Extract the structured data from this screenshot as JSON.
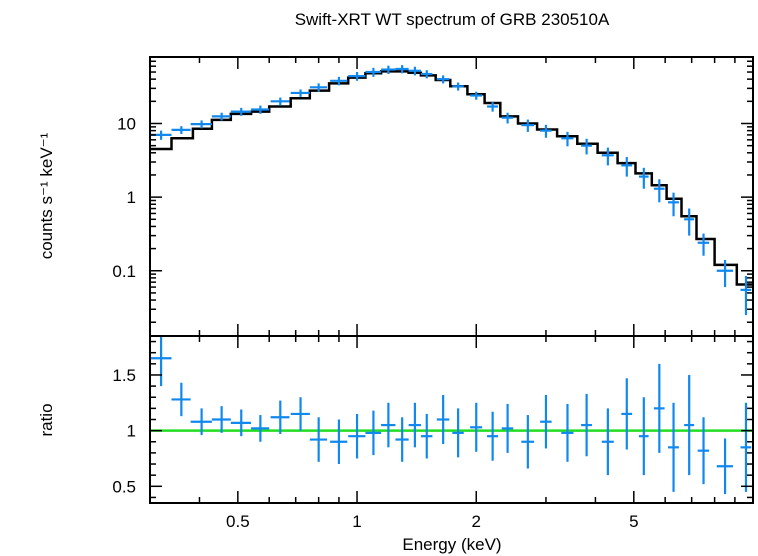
{
  "chart_data": [
    {
      "type": "scatter",
      "title": "Swift-XRT WT spectrum of GRB 230510A",
      "ylabel": "counts s⁻¹ keV⁻¹",
      "xlabel": "",
      "xscale": "log",
      "yscale": "log",
      "xlim": [
        0.3,
        10.0
      ],
      "ylim": [
        0.013,
        80
      ],
      "yticks": [
        0.1,
        1,
        10
      ],
      "ytick_labels": [
        "0.1",
        "1",
        "10"
      ],
      "colors": {
        "data": "#1188ee",
        "model": "#000000"
      },
      "series": [
        {
          "type": "errorbar",
          "points": [
            {
              "x": 0.32,
              "y": 7.0,
              "xe": 0.02,
              "ye": 1.0
            },
            {
              "x": 0.36,
              "y": 8.2,
              "xe": 0.02,
              "ye": 1.0
            },
            {
              "x": 0.405,
              "y": 9.8,
              "xe": 0.025,
              "ye": 1.2
            },
            {
              "x": 0.455,
              "y": 12.5,
              "xe": 0.025,
              "ye": 1.5
            },
            {
              "x": 0.51,
              "y": 14.5,
              "xe": 0.03,
              "ye": 1.8
            },
            {
              "x": 0.57,
              "y": 15.5,
              "xe": 0.03,
              "ye": 2.0
            },
            {
              "x": 0.64,
              "y": 20.0,
              "xe": 0.035,
              "ye": 2.5
            },
            {
              "x": 0.72,
              "y": 26.0,
              "xe": 0.04,
              "ye": 3.0
            },
            {
              "x": 0.8,
              "y": 31.0,
              "xe": 0.04,
              "ye": 4.0
            },
            {
              "x": 0.9,
              "y": 38.0,
              "xe": 0.045,
              "ye": 5.0
            },
            {
              "x": 1.0,
              "y": 44.0,
              "xe": 0.05,
              "ye": 6.0
            },
            {
              "x": 1.1,
              "y": 50.0,
              "xe": 0.05,
              "ye": 7.0
            },
            {
              "x": 1.2,
              "y": 54.0,
              "xe": 0.05,
              "ye": 7.0
            },
            {
              "x": 1.3,
              "y": 55.0,
              "xe": 0.05,
              "ye": 7.0
            },
            {
              "x": 1.4,
              "y": 52.0,
              "xe": 0.05,
              "ye": 7.0
            },
            {
              "x": 1.5,
              "y": 47.0,
              "xe": 0.05,
              "ye": 6.0
            },
            {
              "x": 1.65,
              "y": 40.0,
              "xe": 0.06,
              "ye": 5.0
            },
            {
              "x": 1.8,
              "y": 32.0,
              "xe": 0.06,
              "ye": 4.0
            },
            {
              "x": 2.0,
              "y": 24.0,
              "xe": 0.07,
              "ye": 3.0
            },
            {
              "x": 2.2,
              "y": 17.0,
              "xe": 0.07,
              "ye": 2.5
            },
            {
              "x": 2.4,
              "y": 12.0,
              "xe": 0.08,
              "ye": 2.0
            },
            {
              "x": 2.7,
              "y": 9.5,
              "xe": 0.1,
              "ye": 1.8
            },
            {
              "x": 3.0,
              "y": 8.0,
              "xe": 0.1,
              "ye": 1.6
            },
            {
              "x": 3.4,
              "y": 6.3,
              "xe": 0.12,
              "ye": 1.4
            },
            {
              "x": 3.8,
              "y": 5.0,
              "xe": 0.12,
              "ye": 1.2
            },
            {
              "x": 4.3,
              "y": 3.7,
              "xe": 0.15,
              "ye": 1.0
            },
            {
              "x": 4.8,
              "y": 2.7,
              "xe": 0.15,
              "ye": 0.8
            },
            {
              "x": 5.3,
              "y": 1.9,
              "xe": 0.15,
              "ye": 0.6
            },
            {
              "x": 5.8,
              "y": 1.3,
              "xe": 0.18,
              "ye": 0.45
            },
            {
              "x": 6.3,
              "y": 0.85,
              "xe": 0.2,
              "ye": 0.3
            },
            {
              "x": 6.9,
              "y": 0.5,
              "xe": 0.2,
              "ye": 0.2
            },
            {
              "x": 7.5,
              "y": 0.24,
              "xe": 0.25,
              "ye": 0.08
            },
            {
              "x": 8.5,
              "y": 0.1,
              "xe": 0.4,
              "ye": 0.04
            },
            {
              "x": 9.6,
              "y": 0.055,
              "xe": 0.3,
              "ye": 0.03
            }
          ]
        },
        {
          "type": "step",
          "points": [
            {
              "x": 0.3,
              "y": 4.5
            },
            {
              "x": 0.34,
              "y": 6.3
            },
            {
              "x": 0.385,
              "y": 8.5
            },
            {
              "x": 0.43,
              "y": 11.2
            },
            {
              "x": 0.48,
              "y": 13.5
            },
            {
              "x": 0.54,
              "y": 14.5
            },
            {
              "x": 0.6,
              "y": 17.0
            },
            {
              "x": 0.68,
              "y": 22.0
            },
            {
              "x": 0.76,
              "y": 28.0
            },
            {
              "x": 0.85,
              "y": 35.0
            },
            {
              "x": 0.95,
              "y": 42.0
            },
            {
              "x": 1.05,
              "y": 48.0
            },
            {
              "x": 1.15,
              "y": 51.0
            },
            {
              "x": 1.25,
              "y": 51.0
            },
            {
              "x": 1.35,
              "y": 49.0
            },
            {
              "x": 1.45,
              "y": 45.0
            },
            {
              "x": 1.58,
              "y": 39.0
            },
            {
              "x": 1.72,
              "y": 32.0
            },
            {
              "x": 1.9,
              "y": 25.0
            },
            {
              "x": 2.1,
              "y": 19.0
            },
            {
              "x": 2.3,
              "y": 12.5
            },
            {
              "x": 2.55,
              "y": 10.0
            },
            {
              "x": 2.85,
              "y": 8.3
            },
            {
              "x": 3.2,
              "y": 6.7
            },
            {
              "x": 3.6,
              "y": 5.3
            },
            {
              "x": 4.05,
              "y": 4.0
            },
            {
              "x": 4.55,
              "y": 2.9
            },
            {
              "x": 5.05,
              "y": 2.1
            },
            {
              "x": 5.55,
              "y": 1.45
            },
            {
              "x": 6.05,
              "y": 0.95
            },
            {
              "x": 6.6,
              "y": 0.55
            },
            {
              "x": 7.2,
              "y": 0.27
            },
            {
              "x": 8.0,
              "y": 0.12
            },
            {
              "x": 9.1,
              "y": 0.065
            },
            {
              "x": 10.0,
              "y": 0.065
            }
          ]
        }
      ]
    },
    {
      "type": "scatter",
      "title": "",
      "ylabel": "ratio",
      "xlabel": "Energy (keV)",
      "xscale": "log",
      "yscale": "linear",
      "xlim": [
        0.3,
        10.0
      ],
      "ylim": [
        0.35,
        1.85
      ],
      "xticks": [
        0.5,
        1,
        2,
        5
      ],
      "xtick_labels": [
        "0.5",
        "1",
        "2",
        "5"
      ],
      "yticks": [
        0.5,
        1,
        1.5
      ],
      "ytick_labels": [
        "0.5",
        "1",
        "1.5"
      ],
      "reference_line": 1.0,
      "colors": {
        "data": "#1188ee",
        "reference": "#22dd22"
      },
      "series": [
        {
          "type": "errorbar",
          "points": [
            {
              "x": 0.32,
              "y": 1.65,
              "xe": 0.02,
              "ye": 0.25
            },
            {
              "x": 0.36,
              "y": 1.28,
              "xe": 0.02,
              "ye": 0.15
            },
            {
              "x": 0.405,
              "y": 1.08,
              "xe": 0.025,
              "ye": 0.12
            },
            {
              "x": 0.455,
              "y": 1.1,
              "xe": 0.025,
              "ye": 0.12
            },
            {
              "x": 0.51,
              "y": 1.07,
              "xe": 0.03,
              "ye": 0.12
            },
            {
              "x": 0.57,
              "y": 1.02,
              "xe": 0.03,
              "ye": 0.12
            },
            {
              "x": 0.64,
              "y": 1.12,
              "xe": 0.035,
              "ye": 0.15
            },
            {
              "x": 0.72,
              "y": 1.15,
              "xe": 0.04,
              "ye": 0.15
            },
            {
              "x": 0.8,
              "y": 0.92,
              "xe": 0.04,
              "ye": 0.2
            },
            {
              "x": 0.9,
              "y": 0.9,
              "xe": 0.045,
              "ye": 0.2
            },
            {
              "x": 1.0,
              "y": 0.95,
              "xe": 0.05,
              "ye": 0.2
            },
            {
              "x": 1.1,
              "y": 0.98,
              "xe": 0.05,
              "ye": 0.2
            },
            {
              "x": 1.2,
              "y": 1.05,
              "xe": 0.05,
              "ye": 0.2
            },
            {
              "x": 1.3,
              "y": 0.92,
              "xe": 0.05,
              "ye": 0.2
            },
            {
              "x": 1.4,
              "y": 1.05,
              "xe": 0.05,
              "ye": 0.2
            },
            {
              "x": 1.5,
              "y": 0.95,
              "xe": 0.05,
              "ye": 0.2
            },
            {
              "x": 1.65,
              "y": 1.1,
              "xe": 0.06,
              "ye": 0.22
            },
            {
              "x": 1.8,
              "y": 0.98,
              "xe": 0.06,
              "ye": 0.22
            },
            {
              "x": 2.0,
              "y": 1.03,
              "xe": 0.07,
              "ye": 0.22
            },
            {
              "x": 2.2,
              "y": 0.95,
              "xe": 0.07,
              "ye": 0.22
            },
            {
              "x": 2.4,
              "y": 1.02,
              "xe": 0.08,
              "ye": 0.22
            },
            {
              "x": 2.7,
              "y": 0.9,
              "xe": 0.1,
              "ye": 0.24
            },
            {
              "x": 3.0,
              "y": 1.08,
              "xe": 0.1,
              "ye": 0.24
            },
            {
              "x": 3.4,
              "y": 0.98,
              "xe": 0.12,
              "ye": 0.26
            },
            {
              "x": 3.8,
              "y": 1.05,
              "xe": 0.12,
              "ye": 0.28
            },
            {
              "x": 4.3,
              "y": 0.9,
              "xe": 0.15,
              "ye": 0.3
            },
            {
              "x": 4.8,
              "y": 1.15,
              "xe": 0.15,
              "ye": 0.32
            },
            {
              "x": 5.3,
              "y": 0.95,
              "xe": 0.15,
              "ye": 0.35
            },
            {
              "x": 5.8,
              "y": 1.2,
              "xe": 0.18,
              "ye": 0.4
            },
            {
              "x": 6.3,
              "y": 0.85,
              "xe": 0.2,
              "ye": 0.4
            },
            {
              "x": 6.9,
              "y": 1.05,
              "xe": 0.2,
              "ye": 0.45
            },
            {
              "x": 7.5,
              "y": 0.82,
              "xe": 0.25,
              "ye": 0.3
            },
            {
              "x": 8.5,
              "y": 0.68,
              "xe": 0.4,
              "ye": 0.25
            },
            {
              "x": 9.6,
              "y": 0.85,
              "xe": 0.3,
              "ye": 0.4
            }
          ]
        }
      ]
    }
  ]
}
